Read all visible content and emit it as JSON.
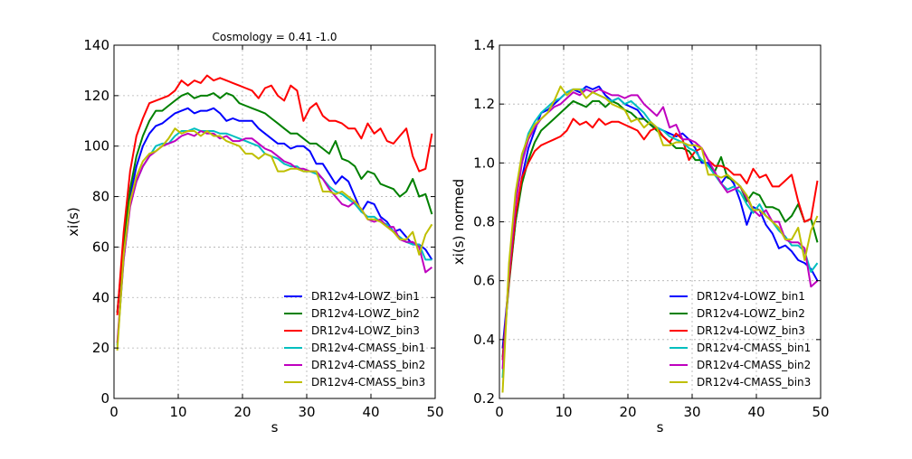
{
  "chart_data": [
    {
      "type": "line",
      "title": "Cosmology = 0.41 -1.0",
      "xlabel": "s",
      "ylabel": "xi(s)",
      "xlim": [
        0,
        50
      ],
      "ylim": [
        0,
        140
      ],
      "xticks": [
        "0",
        "10",
        "20",
        "30",
        "40",
        "50"
      ],
      "yticks": [
        "0",
        "20",
        "40",
        "60",
        "80",
        "100",
        "120",
        "140"
      ],
      "grid": true,
      "legend_position": "lower-right",
      "x": [
        0.5,
        1.5,
        2.5,
        3.5,
        4.5,
        5.5,
        6.5,
        7.5,
        8.5,
        9.5,
        10.5,
        11.5,
        12.5,
        13.5,
        14.5,
        15.5,
        16.5,
        17.5,
        18.5,
        19.5,
        20.5,
        21.5,
        22.5,
        23.5,
        24.5,
        25.5,
        26.5,
        27.5,
        28.5,
        29.5,
        30.5,
        31.5,
        32.5,
        33.5,
        34.5,
        35.5,
        36.5,
        37.5,
        38.5,
        39.5,
        40.5,
        41.5,
        42.5,
        43.5,
        44.5,
        45.5,
        46.5,
        47.5,
        48.5,
        49.5
      ],
      "series": [
        {
          "name": "DR12v4-LOWZ_bin1",
          "color": "#0000ff",
          "values": [
            34,
            60,
            80,
            92,
            100,
            105,
            108,
            109,
            111,
            113,
            114,
            115,
            113,
            114,
            114,
            115,
            113,
            110,
            111,
            110,
            110,
            110,
            107,
            105,
            103,
            101,
            101,
            99,
            100,
            100,
            98,
            93,
            93,
            89,
            85,
            88,
            86,
            80,
            74,
            78,
            77,
            72,
            70,
            66,
            67,
            64,
            61,
            61,
            59,
            55
          ]
        },
        {
          "name": "DR12v4-LOWZ_bin2",
          "color": "#008000",
          "values": [
            34,
            62,
            83,
            96,
            104,
            110,
            114,
            114,
            116,
            118,
            120,
            121,
            119,
            120,
            120,
            121,
            119,
            121,
            120,
            117,
            116,
            115,
            114,
            113,
            111,
            109,
            107,
            105,
            105,
            103,
            101,
            101,
            99,
            97,
            102,
            95,
            94,
            92,
            87,
            90,
            89,
            85,
            84,
            83,
            80,
            82,
            87,
            80,
            81,
            73
          ]
        },
        {
          "name": "DR12v4-LOWZ_bin3",
          "color": "#ff0000",
          "values": [
            33,
            66,
            90,
            104,
            111,
            117,
            118,
            119,
            120,
            122,
            126,
            124,
            126,
            125,
            128,
            126,
            127,
            126,
            125,
            124,
            123,
            122,
            119,
            123,
            124,
            120,
            118,
            124,
            122,
            110,
            115,
            117,
            112,
            110,
            110,
            109,
            107,
            107,
            103,
            109,
            105,
            107,
            102,
            101,
            104,
            107,
            96,
            90,
            91,
            105
          ]
        },
        {
          "name": "DR12v4-CMASS_bin1",
          "color": "#00bfbf",
          "values": [
            21,
            55,
            77,
            86,
            92,
            96,
            100,
            101,
            101,
            104,
            106,
            106,
            107,
            106,
            106,
            106,
            105,
            105,
            104,
            103,
            102,
            101,
            100,
            97,
            96,
            95,
            93,
            92,
            92,
            90,
            90,
            89,
            87,
            84,
            82,
            81,
            79,
            77,
            74,
            72,
            72,
            70,
            69,
            66,
            64,
            62,
            61,
            61,
            55,
            55
          ]
        },
        {
          "name": "DR12v4-CMASS_bin2",
          "color": "#bf00bf",
          "values": [
            22,
            55,
            76,
            86,
            92,
            96,
            98,
            100,
            101,
            102,
            104,
            105,
            104,
            106,
            105,
            105,
            103,
            104,
            102,
            102,
            103,
            103,
            101,
            99,
            98,
            96,
            94,
            93,
            91,
            91,
            90,
            90,
            87,
            83,
            80,
            77,
            76,
            78,
            75,
            71,
            70,
            71,
            68,
            68,
            63,
            62,
            62,
            60,
            50,
            52
          ]
        },
        {
          "name": "DR12v4-CMASS_bin3",
          "color": "#bfbf00",
          "values": [
            19,
            57,
            78,
            88,
            94,
            97,
            98,
            100,
            103,
            107,
            105,
            106,
            106,
            104,
            106,
            104,
            104,
            102,
            101,
            100,
            97,
            97,
            95,
            97,
            96,
            90,
            90,
            91,
            91,
            90,
            90,
            90,
            82,
            82,
            81,
            82,
            80,
            78,
            75,
            71,
            71,
            70,
            68,
            66,
            63,
            63,
            66,
            57,
            65,
            69
          ]
        }
      ]
    },
    {
      "type": "line",
      "title": "",
      "xlabel": "s",
      "ylabel": "xi(s) normed",
      "xlim": [
        0,
        50
      ],
      "ylim": [
        0.2,
        1.4
      ],
      "xticks": [
        "0",
        "10",
        "20",
        "30",
        "40",
        "50"
      ],
      "yticks": [
        "0.2",
        "0.4",
        "0.6",
        "0.8",
        "1.0",
        "1.2",
        "1.4"
      ],
      "grid": true,
      "legend_position": "lower-right",
      "x": [
        0.5,
        1.5,
        2.5,
        3.5,
        4.5,
        5.5,
        6.5,
        7.5,
        8.5,
        9.5,
        10.5,
        11.5,
        12.5,
        13.5,
        14.5,
        15.5,
        16.5,
        17.5,
        18.5,
        19.5,
        20.5,
        21.5,
        22.5,
        23.5,
        24.5,
        25.5,
        26.5,
        27.5,
        28.5,
        29.5,
        30.5,
        31.5,
        32.5,
        33.5,
        34.5,
        35.5,
        36.5,
        37.5,
        38.5,
        39.5,
        40.5,
        41.5,
        42.5,
        43.5,
        44.5,
        45.5,
        46.5,
        47.5,
        48.5,
        49.5
      ],
      "series": [
        {
          "name": "DR12v4-LOWZ_bin1",
          "color": "#0000ff",
          "values": [
            0.37,
            0.6,
            0.8,
            0.95,
            1.05,
            1.11,
            1.17,
            1.18,
            1.2,
            1.22,
            1.24,
            1.25,
            1.24,
            1.26,
            1.25,
            1.26,
            1.23,
            1.21,
            1.22,
            1.2,
            1.19,
            1.18,
            1.15,
            1.13,
            1.12,
            1.11,
            1.1,
            1.09,
            1.1,
            1.08,
            1.05,
            1.0,
            1.0,
            0.97,
            0.93,
            0.96,
            0.93,
            0.87,
            0.79,
            0.85,
            0.84,
            0.79,
            0.76,
            0.71,
            0.72,
            0.7,
            0.67,
            0.66,
            0.64,
            0.6
          ]
        },
        {
          "name": "DR12v4-LOWZ_bin2",
          "color": "#008000",
          "values": [
            0.34,
            0.59,
            0.8,
            0.93,
            1.01,
            1.07,
            1.11,
            1.13,
            1.15,
            1.17,
            1.19,
            1.21,
            1.2,
            1.19,
            1.21,
            1.21,
            1.19,
            1.21,
            1.2,
            1.18,
            1.17,
            1.15,
            1.15,
            1.13,
            1.11,
            1.09,
            1.07,
            1.05,
            1.05,
            1.04,
            1.01,
            1.01,
            0.99,
            0.97,
            1.02,
            0.95,
            0.94,
            0.92,
            0.87,
            0.9,
            0.89,
            0.85,
            0.85,
            0.84,
            0.8,
            0.82,
            0.86,
            0.8,
            0.81,
            0.73
          ]
        },
        {
          "name": "DR12v4-LOWZ_bin3",
          "color": "#ff0000",
          "values": [
            0.33,
            0.6,
            0.82,
            0.95,
            1.0,
            1.04,
            1.06,
            1.07,
            1.08,
            1.09,
            1.11,
            1.15,
            1.13,
            1.14,
            1.12,
            1.15,
            1.13,
            1.14,
            1.14,
            1.13,
            1.12,
            1.11,
            1.08,
            1.11,
            1.12,
            1.09,
            1.07,
            1.1,
            1.08,
            1.01,
            1.04,
            1.05,
            1.01,
            0.99,
            0.99,
            0.98,
            0.96,
            0.96,
            0.93,
            0.98,
            0.95,
            0.96,
            0.92,
            0.92,
            0.94,
            0.96,
            0.87,
            0.8,
            0.81,
            0.94
          ]
        },
        {
          "name": "DR12v4-CMASS_bin1",
          "color": "#00bfbf",
          "values": [
            0.27,
            0.63,
            0.87,
            1.02,
            1.1,
            1.14,
            1.17,
            1.19,
            1.21,
            1.22,
            1.24,
            1.25,
            1.25,
            1.25,
            1.24,
            1.23,
            1.22,
            1.21,
            1.22,
            1.2,
            1.21,
            1.19,
            1.17,
            1.14,
            1.12,
            1.11,
            1.09,
            1.08,
            1.07,
            1.05,
            1.04,
            1.01,
            0.99,
            0.96,
            0.93,
            0.91,
            0.92,
            0.9,
            0.86,
            0.83,
            0.86,
            0.82,
            0.8,
            0.77,
            0.75,
            0.72,
            0.72,
            0.7,
            0.63,
            0.66
          ]
        },
        {
          "name": "DR12v4-CMASS_bin2",
          "color": "#bf00bf",
          "values": [
            0.3,
            0.63,
            0.86,
            1.0,
            1.08,
            1.12,
            1.15,
            1.17,
            1.19,
            1.2,
            1.22,
            1.24,
            1.23,
            1.25,
            1.24,
            1.25,
            1.24,
            1.23,
            1.23,
            1.22,
            1.23,
            1.23,
            1.2,
            1.18,
            1.16,
            1.19,
            1.12,
            1.13,
            1.08,
            1.08,
            1.07,
            1.05,
            1.01,
            0.97,
            0.93,
            0.9,
            0.91,
            0.92,
            0.88,
            0.84,
            0.82,
            0.84,
            0.8,
            0.8,
            0.74,
            0.73,
            0.73,
            0.71,
            0.58,
            0.6
          ]
        },
        {
          "name": "DR12v4-CMASS_bin3",
          "color": "#bfbf00",
          "values": [
            0.22,
            0.66,
            0.9,
            1.03,
            1.09,
            1.13,
            1.15,
            1.17,
            1.21,
            1.26,
            1.23,
            1.25,
            1.25,
            1.22,
            1.24,
            1.23,
            1.22,
            1.2,
            1.19,
            1.18,
            1.14,
            1.15,
            1.12,
            1.14,
            1.12,
            1.06,
            1.06,
            1.07,
            1.07,
            1.06,
            1.06,
            1.05,
            0.96,
            0.96,
            0.95,
            0.96,
            0.94,
            0.92,
            0.89,
            0.84,
            0.84,
            0.82,
            0.8,
            0.78,
            0.74,
            0.74,
            0.78,
            0.67,
            0.77,
            0.82
          ]
        }
      ]
    }
  ]
}
